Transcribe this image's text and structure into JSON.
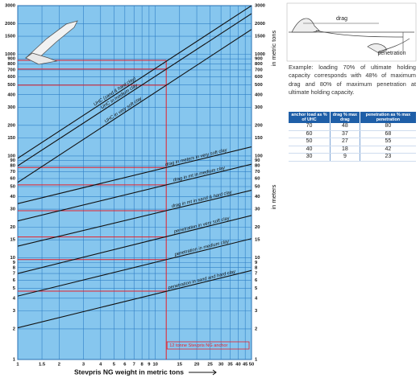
{
  "chart_data": {
    "type": "line",
    "x_scale": "log",
    "y_scale": "log",
    "xlim": [
      1,
      50
    ],
    "xticks": [
      1,
      1.5,
      2,
      3,
      4,
      5,
      6,
      7,
      8,
      9,
      10,
      15,
      20,
      25,
      30,
      35,
      40,
      45,
      50
    ],
    "ylim": [
      1,
      3000
    ],
    "yticks": [
      1,
      2,
      3,
      4,
      5,
      6,
      7,
      8,
      9,
      10,
      15,
      20,
      30,
      40,
      50,
      60,
      70,
      80,
      90,
      100,
      150,
      200,
      300,
      400,
      500,
      600,
      700,
      800,
      900,
      1000,
      1500,
      2000,
      3000
    ],
    "grid": true,
    "x_label": "Stevpris NG weight in metric tons",
    "y2_label_top": "in metric tons",
    "y2_label_bottom": "in meters",
    "x": [
      1,
      50
    ],
    "series": [
      {
        "name": "UHC (sand & hard clay)",
        "color": "#111111",
        "values": [
          95,
          3000
        ]
      },
      {
        "name": "UHC in medium clay",
        "color": "#111111",
        "values": [
          80,
          2500
        ]
      },
      {
        "name": "UHC in very soft clay",
        "color": "#111111",
        "values": [
          55,
          1750
        ]
      },
      {
        "name": "drag in meters in very soft clay",
        "color": "#111111",
        "values": [
          34,
          123
        ]
      },
      {
        "name": "drag in mt in medium clay",
        "color": "#111111",
        "values": [
          23,
          83
        ]
      },
      {
        "name": "drag in mt in sand & hard clay",
        "color": "#111111",
        "values": [
          13,
          46
        ]
      },
      {
        "name": "penetration in very soft clay",
        "color": "#111111",
        "values": [
          7,
          26
        ]
      },
      {
        "name": "penetration in medium clay",
        "color": "#111111",
        "values": [
          4.2,
          15.4
        ]
      },
      {
        "name": "penetration in sand and hard clay",
        "color": "#111111",
        "values": [
          2.05,
          7.5
        ]
      }
    ],
    "reference": {
      "color": "#e8202a",
      "x": 12,
      "y": [
        870,
        714,
        496,
        77,
        52,
        29,
        16,
        9.6,
        4.7
      ],
      "label": "12 tonne Stevpris NG anchor"
    }
  },
  "panel": {
    "diagram": {
      "drag_label": "drag",
      "penetration_label": "penetration"
    },
    "example": "Example: loading 70% of ultimate holding capacity corresponds with 48% of maximum drag and 80% of maximum penetration at ultimate holding capacity.",
    "table": {
      "header": [
        "anchor load as % of UHC",
        "drag % max drag",
        "penetration as % max penetration"
      ],
      "rows": [
        [
          "70",
          "48",
          "80"
        ],
        [
          "60",
          "37",
          "68"
        ],
        [
          "50",
          "27",
          "55"
        ],
        [
          "40",
          "18",
          "42"
        ],
        [
          "30",
          "9",
          "23"
        ]
      ]
    }
  }
}
